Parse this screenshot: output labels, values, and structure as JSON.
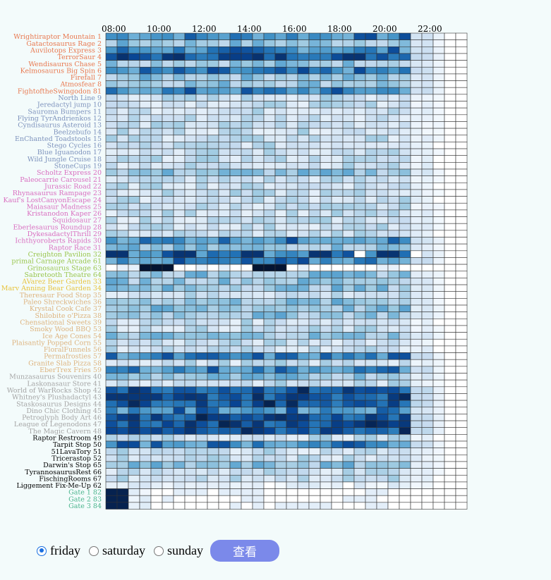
{
  "chart_data": {
    "type": "heatmap",
    "x_ticks": [
      "08:00",
      "10:00",
      "12:00",
      "14:00",
      "16:00",
      "18:00",
      "20:00",
      "22:00"
    ],
    "x_ticks_start_col": 0,
    "cols_per_tick": 4,
    "n_cols": 32,
    "colors": {
      "Rides1": "#e8784f",
      "Shows": "#7e93bd",
      "Rides2": "#d96fc0",
      "Food": "#99c54c",
      "FoodYellow": "#e7c33c",
      "Beige": "#ddb37e",
      "Gray": "#a5a5a5",
      "Black": "#000000",
      "Teal": "#49b48c"
    },
    "rows": [
      {
        "label": "Wrightiraptor Mountain 1",
        "group": "Rides1",
        "profile": "high"
      },
      {
        "label": "Gatactosaurus Rage 2",
        "group": "Rides1",
        "profile": "mid"
      },
      {
        "label": "Auvilotops Express 3",
        "group": "Rides1",
        "profile": "high"
      },
      {
        "label": "TerrorSaur 4",
        "group": "Rides1",
        "profile": "peak"
      },
      {
        "label": "Wendisaurus Chase 5",
        "group": "Rides1",
        "profile": "mid"
      },
      {
        "label": "Kelmosaurus Big Spin 6",
        "group": "Rides1",
        "profile": "high"
      },
      {
        "label": "Firefall 7",
        "group": "Rides1",
        "profile": "mid"
      },
      {
        "label": "Atmosfear 8",
        "group": "Rides1",
        "profile": "mid"
      },
      {
        "label": "FightoftheSwingodon 81",
        "group": "Rides1",
        "profile": "high"
      },
      {
        "label": "North Line 9",
        "group": "Shows",
        "profile": "low"
      },
      {
        "label": "Jeredactyl jump 10",
        "group": "Shows",
        "profile": "low"
      },
      {
        "label": "Sauroma Bumpers 11",
        "group": "Shows",
        "profile": "low"
      },
      {
        "label": "Flying TyrAndrienkos 12",
        "group": "Shows",
        "profile": "low"
      },
      {
        "label": "Cyndisaurus Asteroid 13",
        "group": "Shows",
        "profile": "low"
      },
      {
        "label": "Beelzebufo 14",
        "group": "Shows",
        "profile": "low"
      },
      {
        "label": "EnChanted Toadstools 15",
        "group": "Shows",
        "profile": "low"
      },
      {
        "label": "Stego Cycles 16",
        "group": "Shows",
        "profile": "low"
      },
      {
        "label": "Blue Iguanodon 17",
        "group": "Shows",
        "profile": "low"
      },
      {
        "label": "Wild Jungle Cruise 18",
        "group": "Shows",
        "profile": "low"
      },
      {
        "label": "StoneCups 19",
        "group": "Shows",
        "profile": "low"
      },
      {
        "label": "Scholtz Express 20",
        "group": "Rides2",
        "profile": "mid"
      },
      {
        "label": "Paleocarrie Carousel 21",
        "group": "Rides2",
        "profile": "low"
      },
      {
        "label": "Jurassic Road 22",
        "group": "Rides2",
        "profile": "low"
      },
      {
        "label": "Rhynasaurus Rampage 23",
        "group": "Rides2",
        "profile": "low"
      },
      {
        "label": "Kauf's LostCanyonEscape 24",
        "group": "Rides2",
        "profile": "low"
      },
      {
        "label": "Maiasaur Madness 25",
        "group": "Rides2",
        "profile": "low"
      },
      {
        "label": "Kristanodon Kaper 26",
        "group": "Rides2",
        "profile": "low"
      },
      {
        "label": "Squidosaur 27",
        "group": "Rides2",
        "profile": "low"
      },
      {
        "label": "Eberlesaurus Roundup 28",
        "group": "Rides2",
        "profile": "low"
      },
      {
        "label": "DykesadactylThrill 29",
        "group": "Rides2",
        "profile": "low"
      },
      {
        "label": "Ichthyoroberts Rapids 30",
        "group": "Rides2",
        "profile": "high"
      },
      {
        "label": "Raptor Race 31",
        "group": "Rides2",
        "profile": "mid"
      },
      {
        "label": "Creighton Pavilion 32",
        "group": "Food",
        "profile": "show"
      },
      {
        "label": "primal Carnage Arcade 61",
        "group": "Food",
        "profile": "high"
      },
      {
        "label": "Grinosaurus Stage 63",
        "group": "Food",
        "profile": "show2"
      },
      {
        "label": "Sabretooth Theatre 64",
        "group": "Food",
        "profile": "mid"
      },
      {
        "label": "AVarez Beer Garden 33",
        "group": "FoodYellow",
        "profile": "mid"
      },
      {
        "label": "Marv Anning Bear Garden 34",
        "group": "FoodYellow",
        "profile": "mid"
      },
      {
        "label": "Theresaur Food Stop 35",
        "group": "Beige",
        "profile": "low"
      },
      {
        "label": "Paleo Shreckwiches 36",
        "group": "Beige",
        "profile": "mid"
      },
      {
        "label": "Krystal Cook Cafe 37",
        "group": "Beige",
        "profile": "mid"
      },
      {
        "label": "Shilobite o'Pizza 38",
        "group": "Beige",
        "profile": "mid"
      },
      {
        "label": "Chensational Sweets 39",
        "group": "Beige",
        "profile": "low"
      },
      {
        "label": "Smoky Wood BBQ 53",
        "group": "Beige",
        "profile": "low"
      },
      {
        "label": "Ice Age Cones 54",
        "group": "Beige",
        "profile": "mid"
      },
      {
        "label": "Plaisantly Popped Corn 55",
        "group": "Beige",
        "profile": "low"
      },
      {
        "label": "FloralFunnels 56",
        "group": "Beige",
        "profile": "low"
      },
      {
        "label": "Permafrosties 57",
        "group": "Beige",
        "profile": "high"
      },
      {
        "label": "Granite Slab Pizza 58",
        "group": "Beige",
        "profile": "low"
      },
      {
        "label": "EberTrex Fries 59",
        "group": "Beige",
        "profile": "high"
      },
      {
        "label": "Munzasaurus Souvenirs 40",
        "group": "Gray",
        "profile": "mid"
      },
      {
        "label": "Laskonasaur Store 41",
        "group": "Gray",
        "profile": "low"
      },
      {
        "label": "World of WarRocks Shop 42",
        "group": "Gray",
        "profile": "peak"
      },
      {
        "label": "Whitney's Plushadactyl 43",
        "group": "Gray",
        "profile": "peak"
      },
      {
        "label": "Staskosaurus Designs 44",
        "group": "Gray",
        "profile": "peak"
      },
      {
        "label": "Dino Chic Clothing 45",
        "group": "Gray",
        "profile": "high"
      },
      {
        "label": "Petroglyph Body Art 46",
        "group": "Gray",
        "profile": "peak"
      },
      {
        "label": "League of Legenodons 47",
        "group": "Gray",
        "profile": "peak"
      },
      {
        "label": "The Magic Cavern 48",
        "group": "Gray",
        "profile": "peak"
      },
      {
        "label": "Raptor Restroom 49",
        "group": "Black",
        "profile": "low"
      },
      {
        "label": "Tarpit Stop 50",
        "group": "Black",
        "profile": "high"
      },
      {
        "label": "51LavaTory 51",
        "group": "Black",
        "profile": "low"
      },
      {
        "label": "Tricerastop 52",
        "group": "Black",
        "profile": "low"
      },
      {
        "label": "Darwin's Stop 65",
        "group": "Black",
        "profile": "mid"
      },
      {
        "label": "TyrannosaurusRest 66",
        "group": "Black",
        "profile": "low"
      },
      {
        "label": "FischingRooms 67",
        "group": "Black",
        "profile": "low"
      },
      {
        "label": "Liggement Fix-Me-Up 62",
        "group": "Black",
        "profile": "vlow"
      },
      {
        "label": "Gate 1 82",
        "group": "Teal",
        "profile": "gate"
      },
      {
        "label": "Gate 2 83",
        "group": "Teal",
        "profile": "gate"
      },
      {
        "label": "Gate 3 84",
        "group": "Teal",
        "profile": "gate"
      }
    ],
    "value_range": [
      0,
      1
    ]
  },
  "controls": {
    "options": [
      {
        "label": "friday",
        "checked": true
      },
      {
        "label": "saturday",
        "checked": false
      },
      {
        "label": "sunday",
        "checked": false
      }
    ],
    "query_label": "查看"
  }
}
